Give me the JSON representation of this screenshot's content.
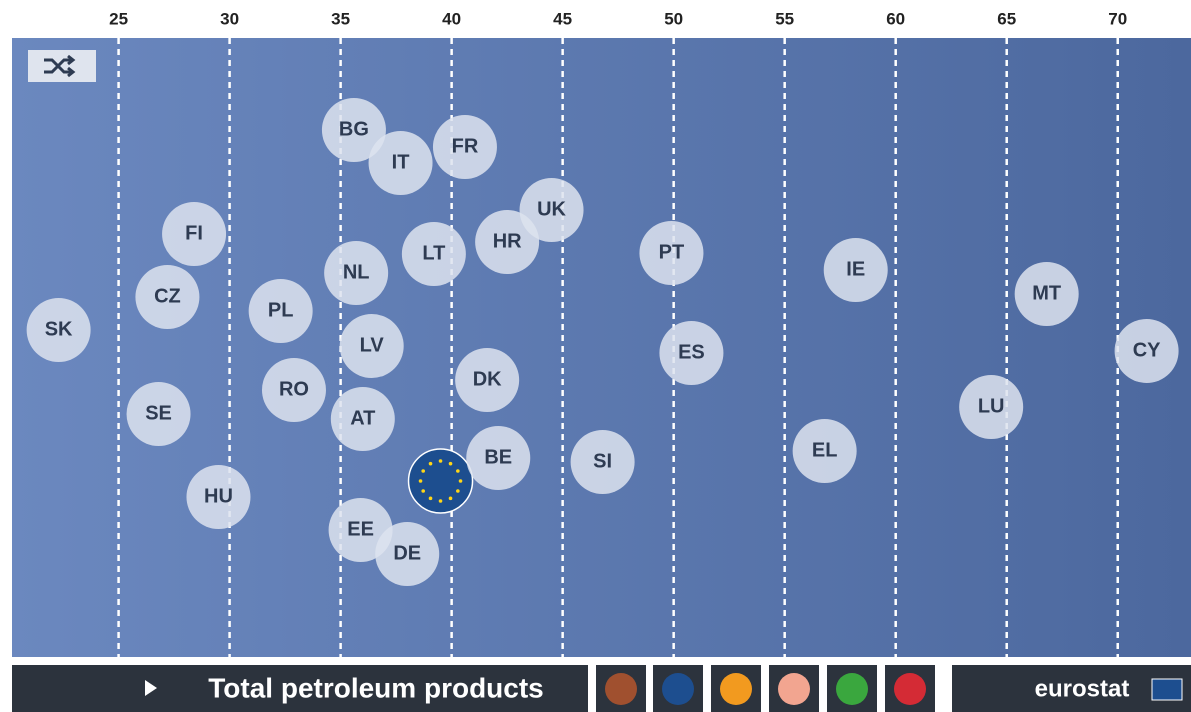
{
  "chart_data": {
    "type": "beeswarm",
    "categories": [
      "SK",
      "FI",
      "CZ",
      "SE",
      "HU",
      "PL",
      "RO",
      "BG",
      "IT",
      "FR",
      "NL",
      "LV",
      "AT",
      "EE",
      "DE",
      "LT",
      null,
      "HR",
      "UK",
      "DK",
      "BE",
      "SI",
      "PT",
      "ES",
      "IE",
      "EL",
      "LU",
      "MT",
      "CY"
    ],
    "values": [
      22.3,
      28.4,
      27.2,
      26.8,
      29.5,
      32.3,
      32.9,
      35.6,
      37.7,
      40.6,
      35.7,
      36.4,
      36.0,
      35.9,
      38.0,
      39.2,
      39.5,
      42.5,
      44.5,
      41.6,
      42.1,
      46.8,
      49.9,
      50.8,
      58.2,
      56.8,
      64.3,
      66.8,
      71.3
    ],
    "color": "#dde3ee",
    "xlim": [
      20.2,
      73.3
    ],
    "xticks": [
      25,
      30,
      35,
      40,
      45,
      50,
      55,
      60,
      65,
      70
    ],
    "grid": true,
    "footer_title": "Total petroleum products",
    "source": "eurostat"
  }
}
